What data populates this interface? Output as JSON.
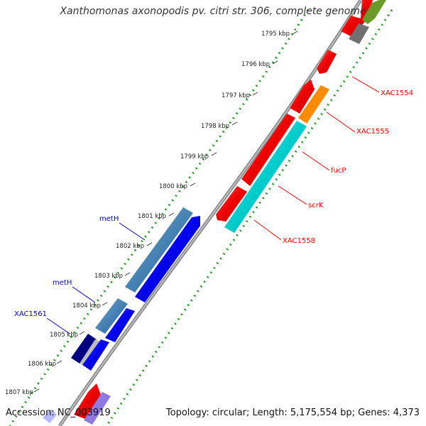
{
  "title": "Xanthomonas axonopodis pv. citri str. 306, complete genome",
  "accession": "Accession: NC_003919",
  "summary": "Topology: circular; Length: 5,175,554 bp; Genes: 4,373",
  "ticks": [
    "1795 kbp",
    "1796 kbp",
    "1797 kbp",
    "1798 kbp",
    "1799 kbp",
    "1800 kbp",
    "1801 kbp",
    "1802 kbp",
    "1803 kbp",
    "1804 kbp",
    "1805 kbp",
    "1806 kbp",
    "1807 kbp"
  ],
  "gene_labels": {
    "xac1554": "XAC1554",
    "xac1555": "XAC1555",
    "fucp": "fucP",
    "scrk": "scrK",
    "xac1558": "XAC1558",
    "meth1": "metH",
    "meth2": "metH",
    "xac1561": "XAC1561"
  },
  "colors": {
    "forward_cds": "#ff0000",
    "reverse_cds": "#0000ff",
    "rna_cyan": "#00c8c8",
    "orange": "#ff8c00",
    "steel": "#4682b4",
    "navy": "#000080",
    "backbone": "#777777",
    "dotted_guide": "#229922"
  }
}
